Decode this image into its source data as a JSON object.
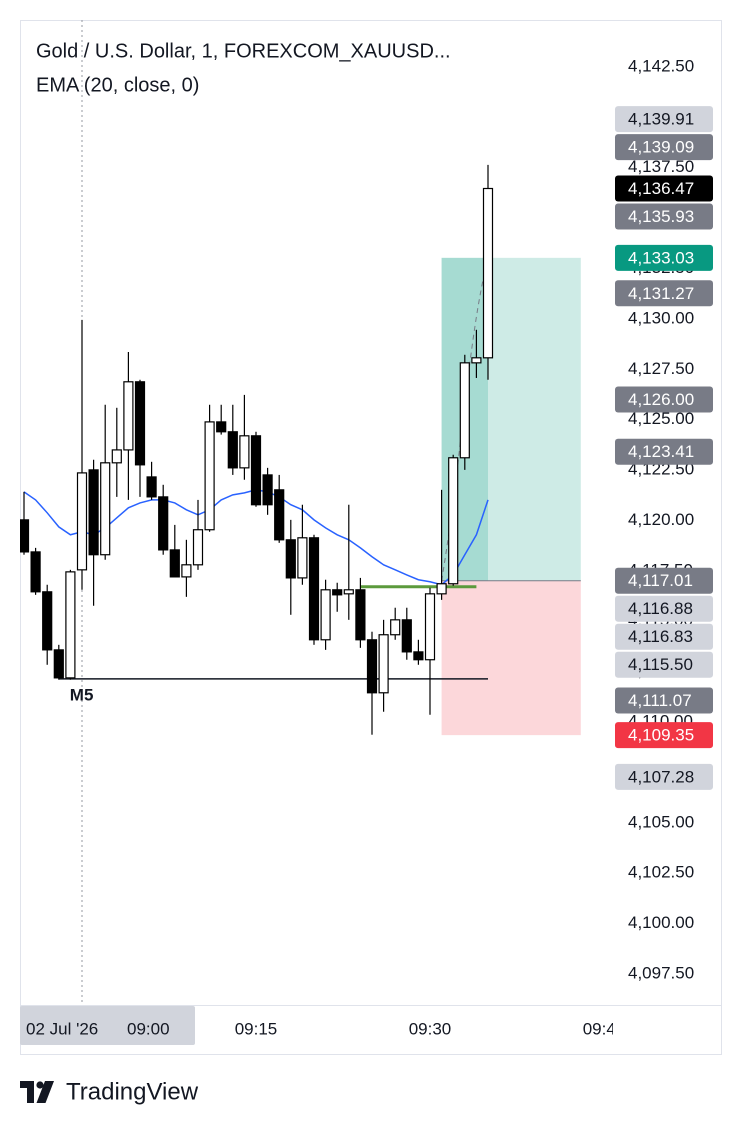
{
  "chart_data": {
    "type": "candlestick",
    "title": "Gold / U.S. Dollar, 1, FOREXCOM_XAUUSD...",
    "x": [
      "08:55",
      "08:56",
      "08:57",
      "08:58",
      "08:59",
      "09:00",
      "09:01",
      "09:02",
      "09:03",
      "09:04",
      "09:05",
      "09:06",
      "09:07",
      "09:08",
      "09:09",
      "09:10",
      "09:11",
      "09:12",
      "09:13",
      "09:14",
      "09:15",
      "09:16",
      "09:17",
      "09:18",
      "09:19",
      "09:20",
      "09:21",
      "09:22",
      "09:23",
      "09:24",
      "09:25",
      "09:26",
      "09:27",
      "09:28",
      "09:29",
      "09:30",
      "09:31",
      "09:32",
      "09:33",
      "09:34",
      "09:35"
    ],
    "open": [
      4120.03,
      4118.44,
      4116.46,
      4113.58,
      4112.19,
      4117.55,
      4122.51,
      4118.3,
      4122.86,
      4123.5,
      4126.88,
      4122.16,
      4121.17,
      4118.54,
      4117.2,
      4117.8,
      4119.54,
      4124.89,
      4124.4,
      4122.61,
      4124.2,
      4122.26,
      4121.52,
      4119.04,
      4117.15,
      4119.14,
      4114.08,
      4116.56,
      4116.36,
      4116.56,
      4114.08,
      4111.45,
      4114.33,
      4115.07,
      4113.48,
      4113.09,
      4116.36,
      4116.86,
      4123.11,
      4127.82,
      4128.07
    ],
    "high": [
      4121.42,
      4118.64,
      4116.81,
      4113.83,
      4117.55,
      4129.95,
      4123.01,
      4125.74,
      4125.59,
      4128.36,
      4126.98,
      4122.91,
      4121.77,
      4119.78,
      4119.04,
      4121.02,
      4125.74,
      4125.74,
      4125.74,
      4126.23,
      4124.4,
      4122.61,
      4122.26,
      4120.03,
      4120.78,
      4119.29,
      4117.06,
      4116.91,
      4120.78,
      4117.15,
      4114.48,
      4115.07,
      4115.67,
      4115.67,
      4114.08,
      4116.66,
      4121.52,
      4123.26,
      4128.22,
      4129.46,
      4137.64
    ],
    "low": [
      4118.3,
      4116.31,
      4112.84,
      4112.1,
      4112.1,
      4116.56,
      4115.77,
      4118.05,
      4121.17,
      4121.02,
      4121.17,
      4121.02,
      4118.3,
      4117.2,
      4116.21,
      4117.55,
      4119.44,
      4124.26,
      4122.26,
      4122.02,
      4120.68,
      4120.28,
      4118.89,
      4115.32,
      4116.81,
      4113.83,
      4113.58,
      4115.47,
      4115.07,
      4113.68,
      4109.37,
      4110.51,
      4114.08,
      4113.09,
      4112.84,
      4110.36,
      4116.06,
      4116.76,
      4122.51,
      4127.07,
      4126.98
    ],
    "close": [
      4118.44,
      4116.46,
      4113.58,
      4112.19,
      4117.45,
      4122.36,
      4118.3,
      4122.86,
      4123.5,
      4126.88,
      4122.76,
      4121.17,
      4118.54,
      4117.2,
      4117.8,
      4119.54,
      4124.89,
      4124.4,
      4122.61,
      4124.2,
      4120.78,
      4120.78,
      4119.04,
      4117.15,
      4119.14,
      4114.08,
      4116.56,
      4116.31,
      4116.56,
      4114.08,
      4111.45,
      4114.33,
      4115.07,
      4113.48,
      4113.09,
      4116.36,
      4116.86,
      4123.11,
      4127.82,
      4128.07,
      4136.47
    ],
    "up_color": "#ffffff",
    "down_color": "#000000",
    "ema": {
      "name": "EMA (20, close, 0)",
      "color": "#2962ff",
      "values": [
        4121.42,
        4121.02,
        4120.38,
        4119.68,
        4119.29,
        4119.44,
        4119.29,
        4119.63,
        4120.13,
        4120.63,
        4120.87,
        4121.02,
        4121.02,
        4120.87,
        4120.53,
        4120.28,
        4120.53,
        4121.02,
        4121.27,
        4121.37,
        4121.52,
        4121.42,
        4121.17,
        4120.78,
        4120.53,
        4120.03,
        4119.63,
        4119.29,
        4119.04,
        4118.64,
        4118.2,
        4117.8,
        4117.55,
        4117.3,
        4117.06,
        4116.96,
        4116.81,
        4117.3,
        4118.3,
        4119.29,
        4121.02
      ]
    },
    "ylim": [
      4095.96,
      4144.83
    ],
    "yticks": [
      {
        "value": 4097.5,
        "label": "4,097.50"
      },
      {
        "value": 4100,
        "label": "4,100.00"
      },
      {
        "value": 4102.5,
        "label": "4,102.50"
      },
      {
        "value": 4105,
        "label": "4,105.00"
      },
      {
        "value": 4107.5,
        "label": "4,107.50"
      },
      {
        "value": 4110,
        "label": "4,110.00"
      },
      {
        "value": 4112.5,
        "label": "4,112.50"
      },
      {
        "value": 4115,
        "label": "4,115.00"
      },
      {
        "value": 4117.5,
        "label": "4,117.50"
      },
      {
        "value": 4120,
        "label": "4,120.00"
      },
      {
        "value": 4122.5,
        "label": "4,122.50"
      },
      {
        "value": 4125,
        "label": "4,125.00"
      },
      {
        "value": 4127.5,
        "label": "4,127.50"
      },
      {
        "value": 4130,
        "label": "4,130.00"
      },
      {
        "value": 4132.5,
        "label": "4,132.50"
      },
      {
        "value": 4135,
        "label": "4,135.00"
      },
      {
        "value": 4137.5,
        "label": "4,137.50"
      },
      {
        "value": 4140,
        "label": "4,140.00"
      },
      {
        "value": 4142.5,
        "label": "4,142.50"
      }
    ],
    "xticks": [
      "09:15",
      "09:30",
      "09:45"
    ],
    "crosshair": {
      "date": "02 Jul '26",
      "time": "09:00"
    },
    "position": {
      "start": "09:31",
      "end": "09:43",
      "target_color": "#089981",
      "stop_color": "#f23645",
      "target": {
        "value": 4133.03,
        "label": "4,133.03",
        "color": "#089981"
      },
      "entry": {
        "value": 4117.01,
        "label": "4,117.01",
        "color": "#787b86"
      },
      "stop": {
        "value": 4109.35,
        "label": "4,109.35",
        "color": "#f23645"
      }
    },
    "lines": [
      {
        "label": "M5",
        "value": 4112.14,
        "start": "08:58",
        "end": "09:35",
        "color": "#131722"
      },
      {
        "value": 4116.71,
        "start": "09:24",
        "end": "09:34",
        "color": "#5b9a3c"
      }
    ],
    "price_labels": [
      {
        "value": 4139.91,
        "label": "4,139.91",
        "color": "#d1d4dc"
      },
      {
        "value": 4139.09,
        "label": "4,139.09",
        "color": "#787b86"
      },
      {
        "value": 4136.47,
        "label": "4,136.47",
        "color": "#000000"
      },
      {
        "value": 4135.93,
        "label": "4,135.93",
        "color": "#787b86"
      },
      {
        "value": 4131.27,
        "label": "4,131.27",
        "color": "#787b86"
      },
      {
        "value": 4126.0,
        "label": "4,126.00",
        "color": "#787b86"
      },
      {
        "value": 4123.41,
        "label": "4,123.41",
        "color": "#787b86"
      },
      {
        "value": 4116.88,
        "label": "4,116.88",
        "color": "#d1d4dc"
      },
      {
        "value": 4116.83,
        "label": "4,116.83",
        "color": "#d1d4dc"
      },
      {
        "value": 4115.5,
        "label": "4,115.50",
        "color": "#d1d4dc"
      },
      {
        "value": 4111.07,
        "label": "4,111.07",
        "color": "#787b86"
      },
      {
        "value": 4107.28,
        "label": "4,107.28",
        "color": "#d1d4dc"
      }
    ]
  },
  "footer": {
    "brand": "TradingView"
  }
}
